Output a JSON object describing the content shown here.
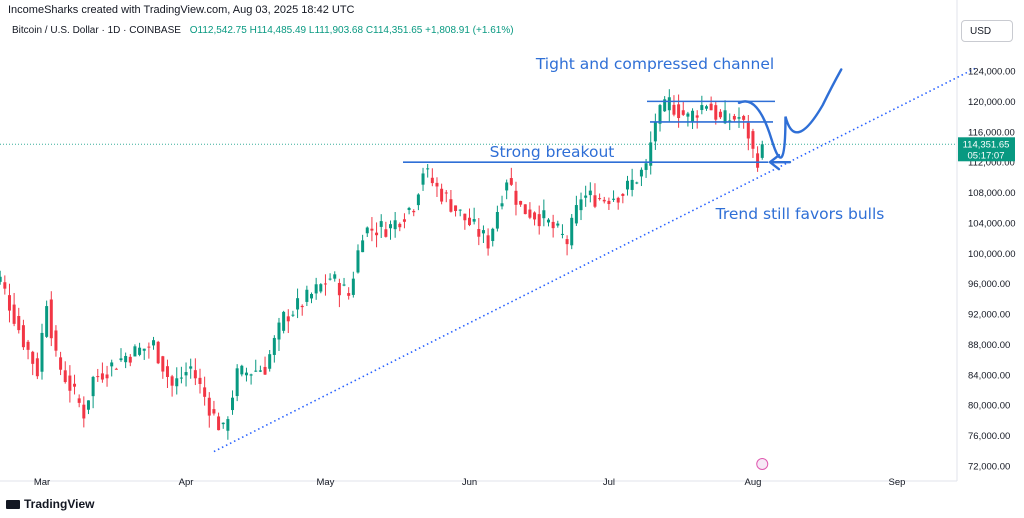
{
  "header": {
    "title": "IncomeSharks created with TradingView.com, Aug 03, 2025 18:42 UTC"
  },
  "legend": {
    "symbol": "Bitcoin / U.S. Dollar · 1D · COINBASE",
    "open": "O112,542.75",
    "high": "H114,485.49",
    "low": "L111,903.68",
    "close": "C114,351.65",
    "change": "+1,808.91 (+1.61%)"
  },
  "currency": "USD",
  "price_tag": {
    "price": "114,351.65",
    "countdown": "05:17:07"
  },
  "brand": "TradingView",
  "colors": {
    "up": "#089981",
    "down": "#f23645",
    "annotation": "#2f6fd6",
    "trend": "#2962ff"
  },
  "chart_data": {
    "type": "candlestick",
    "ylim": [
      70000,
      128000
    ],
    "y_ticks": [
      "124,000.00",
      "120,000.00",
      "116,000.00",
      "112,000.00",
      "108,000.00",
      "104,000.00",
      "100,000.00",
      "96,000.00",
      "92,000.00",
      "88,000.00",
      "84,000.00",
      "80,000.00",
      "76,000.00",
      "72,000.00"
    ],
    "y_tick_values": [
      124000,
      120000,
      116000,
      112000,
      108000,
      104000,
      100000,
      96000,
      92000,
      88000,
      84000,
      80000,
      76000,
      72000
    ],
    "x_ticks": [
      "Mar",
      "Apr",
      "May",
      "Jun",
      "Jul",
      "Aug",
      "Sep"
    ],
    "x_tick_dates": [
      "2025-03-01",
      "2025-04-01",
      "2025-05-01",
      "2025-06-01",
      "2025-07-01",
      "2025-08-01",
      "2025-09-01"
    ],
    "xlim": [
      "2025-02-15",
      "2025-09-30"
    ],
    "close_path": [
      {
        "date": "2025-02-16",
        "close": 97000
      },
      {
        "date": "2025-02-20",
        "close": 96500
      },
      {
        "date": "2025-02-25",
        "close": 88500
      },
      {
        "date": "2025-02-28",
        "close": 84500
      },
      {
        "date": "2025-03-02",
        "close": 94000
      },
      {
        "date": "2025-03-04",
        "close": 86000
      },
      {
        "date": "2025-03-10",
        "close": 79000
      },
      {
        "date": "2025-03-12",
        "close": 83500
      },
      {
        "date": "2025-03-19",
        "close": 86500
      },
      {
        "date": "2025-03-25",
        "close": 88000
      },
      {
        "date": "2025-03-29",
        "close": 82500
      },
      {
        "date": "2025-04-02",
        "close": 85000
      },
      {
        "date": "2025-04-07",
        "close": 78500
      },
      {
        "date": "2025-04-09",
        "close": 76500
      },
      {
        "date": "2025-04-12",
        "close": 84000
      },
      {
        "date": "2025-04-18",
        "close": 85000
      },
      {
        "date": "2025-04-22",
        "close": 91500
      },
      {
        "date": "2025-04-28",
        "close": 94500
      },
      {
        "date": "2025-05-02",
        "close": 96800
      },
      {
        "date": "2025-05-06",
        "close": 94500
      },
      {
        "date": "2025-05-09",
        "close": 103000
      },
      {
        "date": "2025-05-15",
        "close": 103500
      },
      {
        "date": "2025-05-20",
        "close": 106500
      },
      {
        "date": "2025-05-22",
        "close": 111000
      },
      {
        "date": "2025-05-25",
        "close": 108500
      },
      {
        "date": "2025-05-31",
        "close": 104500
      },
      {
        "date": "2025-06-05",
        "close": 101500
      },
      {
        "date": "2025-06-09",
        "close": 110000
      },
      {
        "date": "2025-06-12",
        "close": 106000
      },
      {
        "date": "2025-06-17",
        "close": 104500
      },
      {
        "date": "2025-06-22",
        "close": 101500
      },
      {
        "date": "2025-06-25",
        "close": 107500
      },
      {
        "date": "2025-06-30",
        "close": 107200
      },
      {
        "date": "2025-07-04",
        "close": 108000
      },
      {
        "date": "2025-07-09",
        "close": 111300
      },
      {
        "date": "2025-07-11",
        "close": 117500
      },
      {
        "date": "2025-07-14",
        "close": 119800
      },
      {
        "date": "2025-07-18",
        "close": 117800
      },
      {
        "date": "2025-07-22",
        "close": 119900
      },
      {
        "date": "2025-07-25",
        "close": 117500
      },
      {
        "date": "2025-07-29",
        "close": 117900
      },
      {
        "date": "2025-07-31",
        "close": 115700
      },
      {
        "date": "2025-08-01",
        "close": 113300
      },
      {
        "date": "2025-08-02",
        "close": 112500
      },
      {
        "date": "2025-08-03",
        "close": 114351
      }
    ],
    "annotations": [
      {
        "id": "channel",
        "text": "Tight and compressed channel"
      },
      {
        "id": "breakout",
        "text": "Strong breakout"
      },
      {
        "id": "trend",
        "text": "Trend still favors bulls"
      }
    ],
    "levels": {
      "breakout": 112000,
      "channel_top": 120000,
      "channel_bottom": 117300
    },
    "trendline": [
      {
        "date": "2025-04-07",
        "value": 73900
      },
      {
        "date": "2025-09-18",
        "value": 124400
      }
    ],
    "projection": [
      {
        "date": "2025-08-05",
        "value": 115000
      },
      {
        "date": "2025-08-08",
        "value": 118000
      },
      {
        "date": "2025-08-10",
        "value": 117200
      },
      {
        "date": "2025-08-13",
        "value": 115000
      },
      {
        "date": "2025-08-16",
        "value": 119500
      },
      {
        "date": "2025-08-20",
        "value": 124200
      }
    ]
  }
}
